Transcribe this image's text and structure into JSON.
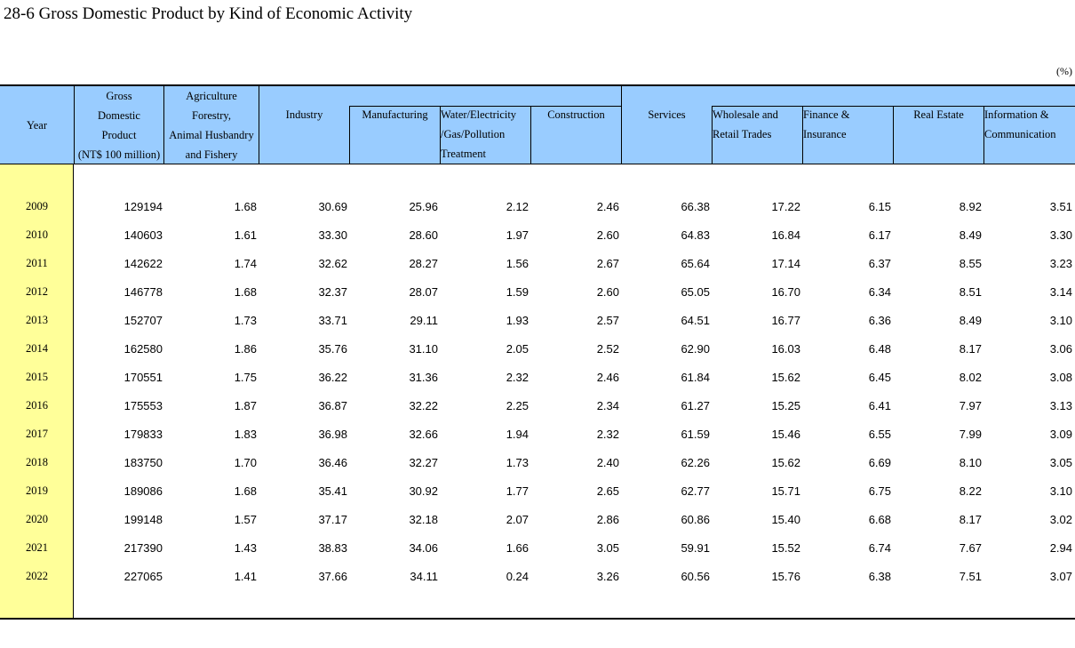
{
  "title": "28-6  Gross Domestic Product by Kind of Economic Activity",
  "unit": "(%)",
  "headers": {
    "year": "Year",
    "gdp": [
      "Gross",
      "Domestic",
      "Product",
      "(NT$ 100 million)"
    ],
    "agriculture": [
      "Agriculture",
      "Forestry,",
      "Animal Husbandry",
      "and Fishery"
    ],
    "industry": "Industry",
    "manufacturing": "Manufacturing",
    "water": [
      "Water/Electricity",
      "/Gas/Pollution",
      "Treatment"
    ],
    "construction": "Construction",
    "services": "Services",
    "wholesale": [
      "Wholesale and",
      "Retail Trades"
    ],
    "finance": [
      "Finance &",
      "Insurance"
    ],
    "realestate": "Real Estate",
    "information": [
      "Information &",
      "Communication"
    ]
  },
  "rows": [
    [
      "2009",
      "129194",
      "1.68",
      "30.69",
      "25.96",
      "2.12",
      "2.46",
      "66.38",
      "17.22",
      "6.15",
      "8.92",
      "3.51"
    ],
    [
      "2010",
      "140603",
      "1.61",
      "33.30",
      "28.60",
      "1.97",
      "2.60",
      "64.83",
      "16.84",
      "6.17",
      "8.49",
      "3.30"
    ],
    [
      "2011",
      "142622",
      "1.74",
      "32.62",
      "28.27",
      "1.56",
      "2.67",
      "65.64",
      "17.14",
      "6.37",
      "8.55",
      "3.23"
    ],
    [
      "2012",
      "146778",
      "1.68",
      "32.37",
      "28.07",
      "1.59",
      "2.60",
      "65.05",
      "16.70",
      "6.34",
      "8.51",
      "3.14"
    ],
    [
      "2013",
      "152707",
      "1.73",
      "33.71",
      "29.11",
      "1.93",
      "2.57",
      "64.51",
      "16.77",
      "6.36",
      "8.49",
      "3.10"
    ],
    [
      "2014",
      "162580",
      "1.86",
      "35.76",
      "31.10",
      "2.05",
      "2.52",
      "62.90",
      "16.03",
      "6.48",
      "8.17",
      "3.06"
    ],
    [
      "2015",
      "170551",
      "1.75",
      "36.22",
      "31.36",
      "2.32",
      "2.46",
      "61.84",
      "15.62",
      "6.45",
      "8.02",
      "3.08"
    ],
    [
      "2016",
      "175553",
      "1.87",
      "36.87",
      "32.22",
      "2.25",
      "2.34",
      "61.27",
      "15.25",
      "6.41",
      "7.97",
      "3.13"
    ],
    [
      "2017",
      "179833",
      "1.83",
      "36.98",
      "32.66",
      "1.94",
      "2.32",
      "61.59",
      "15.46",
      "6.55",
      "7.99",
      "3.09"
    ],
    [
      "2018",
      "183750",
      "1.70",
      "36.46",
      "32.27",
      "1.73",
      "2.40",
      "62.26",
      "15.62",
      "6.69",
      "8.10",
      "3.05"
    ],
    [
      "2019",
      "189086",
      "1.68",
      "35.41",
      "30.92",
      "1.77",
      "2.65",
      "62.77",
      "15.71",
      "6.75",
      "8.22",
      "3.10"
    ],
    [
      "2020",
      "199148",
      "1.57",
      "37.17",
      "32.18",
      "2.07",
      "2.86",
      "60.86",
      "15.40",
      "6.68",
      "8.17",
      "3.02"
    ],
    [
      "2021",
      "217390",
      "1.43",
      "38.83",
      "34.06",
      "1.66",
      "3.05",
      "59.91",
      "15.52",
      "6.74",
      "7.67",
      "2.94"
    ],
    [
      "2022",
      "227065",
      "1.41",
      "37.66",
      "34.11",
      "0.24",
      "3.26",
      "60.56",
      "15.76",
      "6.38",
      "7.51",
      "3.07"
    ]
  ]
}
